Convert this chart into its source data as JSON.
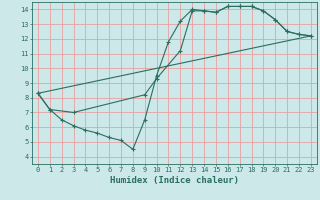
{
  "xlabel": "Humidex (Indice chaleur)",
  "bg_color": "#cce8e8",
  "grid_color": "#e8a0a0",
  "line_color": "#2a6e60",
  "xlim": [
    -0.5,
    23.5
  ],
  "ylim": [
    3.5,
    14.5
  ],
  "xticks": [
    0,
    1,
    2,
    3,
    4,
    5,
    6,
    7,
    8,
    9,
    10,
    11,
    12,
    13,
    14,
    15,
    16,
    17,
    18,
    19,
    20,
    21,
    22,
    23
  ],
  "yticks": [
    4,
    5,
    6,
    7,
    8,
    9,
    10,
    11,
    12,
    13,
    14
  ],
  "line1_x": [
    0,
    1,
    2,
    3,
    4,
    5,
    6,
    7,
    8,
    9,
    10,
    11,
    12,
    13,
    14,
    15,
    16,
    17,
    18,
    19,
    20,
    21,
    22,
    23
  ],
  "line1_y": [
    8.3,
    7.2,
    6.5,
    6.1,
    5.8,
    5.6,
    5.3,
    5.1,
    4.5,
    6.5,
    9.5,
    11.8,
    13.2,
    14.0,
    13.9,
    13.8,
    14.2,
    14.2,
    14.2,
    13.9,
    13.3,
    12.5,
    12.3,
    12.2
  ],
  "line2_x": [
    0,
    1,
    3,
    9,
    10,
    12,
    13,
    14,
    15,
    16,
    17,
    18,
    19,
    20,
    21,
    22,
    23
  ],
  "line2_y": [
    8.3,
    7.2,
    7.0,
    8.2,
    9.3,
    11.2,
    13.9,
    13.9,
    13.8,
    14.2,
    14.2,
    14.2,
    13.9,
    13.3,
    12.5,
    12.3,
    12.2
  ],
  "line3_x": [
    0,
    23
  ],
  "line3_y": [
    8.3,
    12.2
  ]
}
